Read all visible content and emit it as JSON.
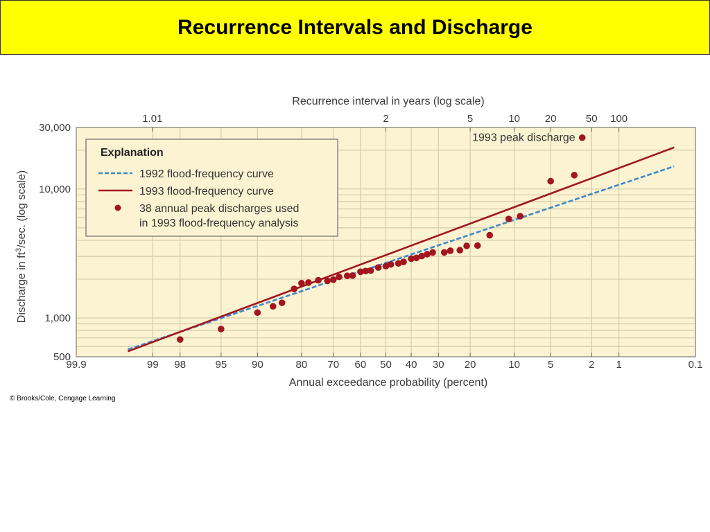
{
  "slide": {
    "title": "Recurrence Intervals and Discharge",
    "copyright": "© Brooks/Cole, Cengage Learning"
  },
  "chart_data": {
    "type": "scatter",
    "title": "",
    "xlabel": "Annual exceedance probability (percent)",
    "x2label": "Recurrence interval in years (log scale)",
    "ylabel": "Discharge in ft³/sec. (log scale)",
    "ylabel_parts": [
      "Discharge in ft",
      "3",
      "/sec. (log scale)"
    ],
    "x_axis_scale": "probability",
    "y_axis_scale": "log",
    "xlim": [
      99.9,
      0.1
    ],
    "ylim": [
      500,
      30000
    ],
    "grid": true,
    "legend_placement": "top-left",
    "bottom_ticks": [
      "99.9",
      "99",
      "98",
      "95",
      "90",
      "80",
      "70",
      "60",
      "50",
      "40",
      "30",
      "20",
      "10",
      "5",
      "2",
      "1",
      "0.1"
    ],
    "top_ticks": [
      "1.01",
      "2",
      "5",
      "10",
      "20",
      "50",
      "100"
    ],
    "y_ticks": [
      "30,000",
      "10,000",
      "1,000",
      "500"
    ],
    "legend": {
      "title": "Explanation",
      "items": [
        {
          "label": "1992 flood-frequency curve",
          "style": "dashed",
          "color": "#3d8ac8"
        },
        {
          "label": "1993 flood-frequency curve",
          "style": "solid",
          "color": "#a3151f"
        },
        {
          "label_lines": [
            "38 annual peak discharges used",
            "in 1993 flood-frequency analysis"
          ],
          "style": "dot",
          "color": "#a3151f"
        }
      ]
    },
    "annotation": {
      "text": "1993 peak discharge",
      "x_percent": 2.5,
      "y": 25000
    },
    "series": [
      {
        "name": "1992 flood-frequency curve",
        "kind": "line",
        "style": "dashed",
        "color": "#3d8ac8",
        "x": [
          99.5,
          0.2
        ],
        "y": [
          570,
          15000
        ]
      },
      {
        "name": "1993 flood-frequency curve",
        "kind": "line",
        "style": "solid",
        "color": "#a3151f",
        "x": [
          99.5,
          0.2
        ],
        "y": [
          550,
          21000
        ]
      },
      {
        "name": "38 annual peak discharges used in 1993 flood-frequency analysis",
        "kind": "scatter",
        "color": "#a3151f",
        "points": [
          [
            98,
            680
          ],
          [
            95,
            820
          ],
          [
            90,
            1100
          ],
          [
            87,
            1230
          ],
          [
            85,
            1310
          ],
          [
            82,
            1680
          ],
          [
            80,
            1860
          ],
          [
            78,
            1880
          ],
          [
            75,
            1960
          ],
          [
            72,
            1940
          ],
          [
            70,
            1980
          ],
          [
            68,
            2080
          ],
          [
            65,
            2120
          ],
          [
            63,
            2130
          ],
          [
            60,
            2280
          ],
          [
            58,
            2310
          ],
          [
            56,
            2330
          ],
          [
            53,
            2460
          ],
          [
            50,
            2520
          ],
          [
            48,
            2600
          ],
          [
            45,
            2650
          ],
          [
            43,
            2720
          ],
          [
            40,
            2880
          ],
          [
            38,
            2920
          ],
          [
            36,
            3020
          ],
          [
            34,
            3120
          ],
          [
            32,
            3220
          ],
          [
            28,
            3220
          ],
          [
            26,
            3320
          ],
          [
            23,
            3350
          ],
          [
            21,
            3620
          ],
          [
            18,
            3640
          ],
          [
            15,
            4380
          ],
          [
            11,
            5850
          ],
          [
            9,
            6150
          ],
          [
            5,
            11500
          ],
          [
            3,
            12800
          ],
          [
            2.5,
            25000
          ]
        ]
      }
    ]
  },
  "colors": {
    "header_bg": "#ffff00",
    "plot_bg": "#fbf3d2",
    "grid": "#d5cba7",
    "frame": "#6a6a6a",
    "red": "#a3151f",
    "blue": "#3d8ac8"
  }
}
